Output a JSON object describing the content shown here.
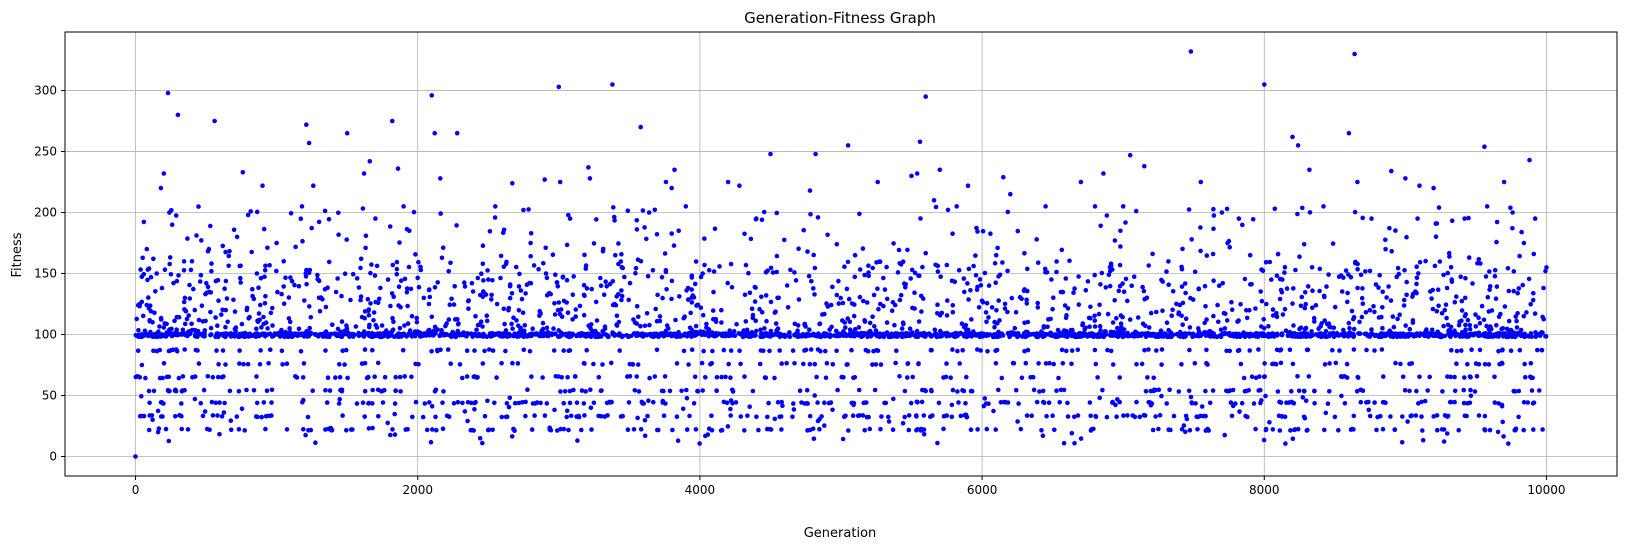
{
  "chart_data": {
    "type": "scatter",
    "title": "Generation-Fitness Graph",
    "xlabel": "Generation",
    "ylabel": "Fitness",
    "xlim": [
      -500,
      10500
    ],
    "ylim": [
      -16,
      348
    ],
    "xticks": [
      0,
      2000,
      4000,
      6000,
      8000,
      10000
    ],
    "yticks": [
      0,
      50,
      100,
      150,
      200,
      250,
      300
    ],
    "grid": true,
    "marker_color": "#0000ff",
    "x_range": [
      0,
      10000
    ],
    "point_count": 10000,
    "baseline": 100,
    "series": [
      {
        "x": [
          0,
          45,
          80,
          120,
          150,
          180,
          200,
          230,
          240,
          260,
          300,
          350,
          400,
          420,
          520,
          560,
          640,
          720,
          760,
          860,
          900,
          1000,
          1050,
          1180,
          1210,
          1230,
          1260,
          1500,
          1620,
          1660,
          1700,
          1790,
          1820,
          1860,
          1900,
          1940,
          2080,
          2100,
          2120,
          2160,
          2280,
          2500,
          2550,
          2670,
          2800,
          2900,
          3000,
          3010,
          3080,
          3210,
          3220,
          3300,
          3380,
          3400,
          3580,
          3640,
          3760,
          3800,
          3820,
          3850,
          3900,
          4020,
          4200,
          4280,
          4400,
          4500,
          4550,
          4780,
          4820,
          5050,
          5100,
          5260,
          5500,
          5540,
          5560,
          5600,
          5660,
          5700,
          5820,
          5900,
          6100,
          6150,
          6200,
          6450,
          6700,
          6800,
          6860,
          6980,
          7000,
          7050,
          7150,
          7480,
          7550,
          7700,
          7740,
          7820,
          7900,
          8000,
          8050,
          8200,
          8240,
          8320,
          8420,
          8600,
          8640,
          8660,
          8760,
          8900,
          9000,
          9100,
          9200,
          9420,
          9560,
          9580,
          9700,
          9760,
          9840,
          9880,
          9920,
          10000
        ],
        "y": [
          0,
          75,
          170,
          110,
          150,
          220,
          232,
          298,
          200,
          190,
          280,
          130,
          160,
          120,
          170,
          275,
          120,
          180,
          233,
          150,
          222,
          175,
          160,
          205,
          272,
          257,
          222,
          265,
          232,
          242,
          195,
          145,
          275,
          236,
          205,
          185,
          125,
          296,
          265,
          228,
          265,
          145,
          205,
          224,
          175,
          227,
          303,
          225,
          195,
          237,
          228,
          140,
          305,
          165,
          270,
          200,
          225,
          220,
          235,
          185,
          205,
          150,
          225,
          222,
          195,
          248,
          130,
          218,
          248,
          255,
          165,
          225,
          230,
          232,
          258,
          295,
          210,
          235,
          205,
          222,
          165,
          229,
          215,
          205,
          225,
          205,
          232,
          185,
          205,
          247,
          238,
          332,
          225,
          200,
          175,
          195,
          165,
          305,
          145,
          262,
          255,
          235,
          205,
          265,
          330,
          225,
          195,
          234,
          228,
          222,
          220,
          195,
          254,
          205,
          225,
          200,
          175,
          243,
          195,
          155
        ]
      }
    ]
  }
}
